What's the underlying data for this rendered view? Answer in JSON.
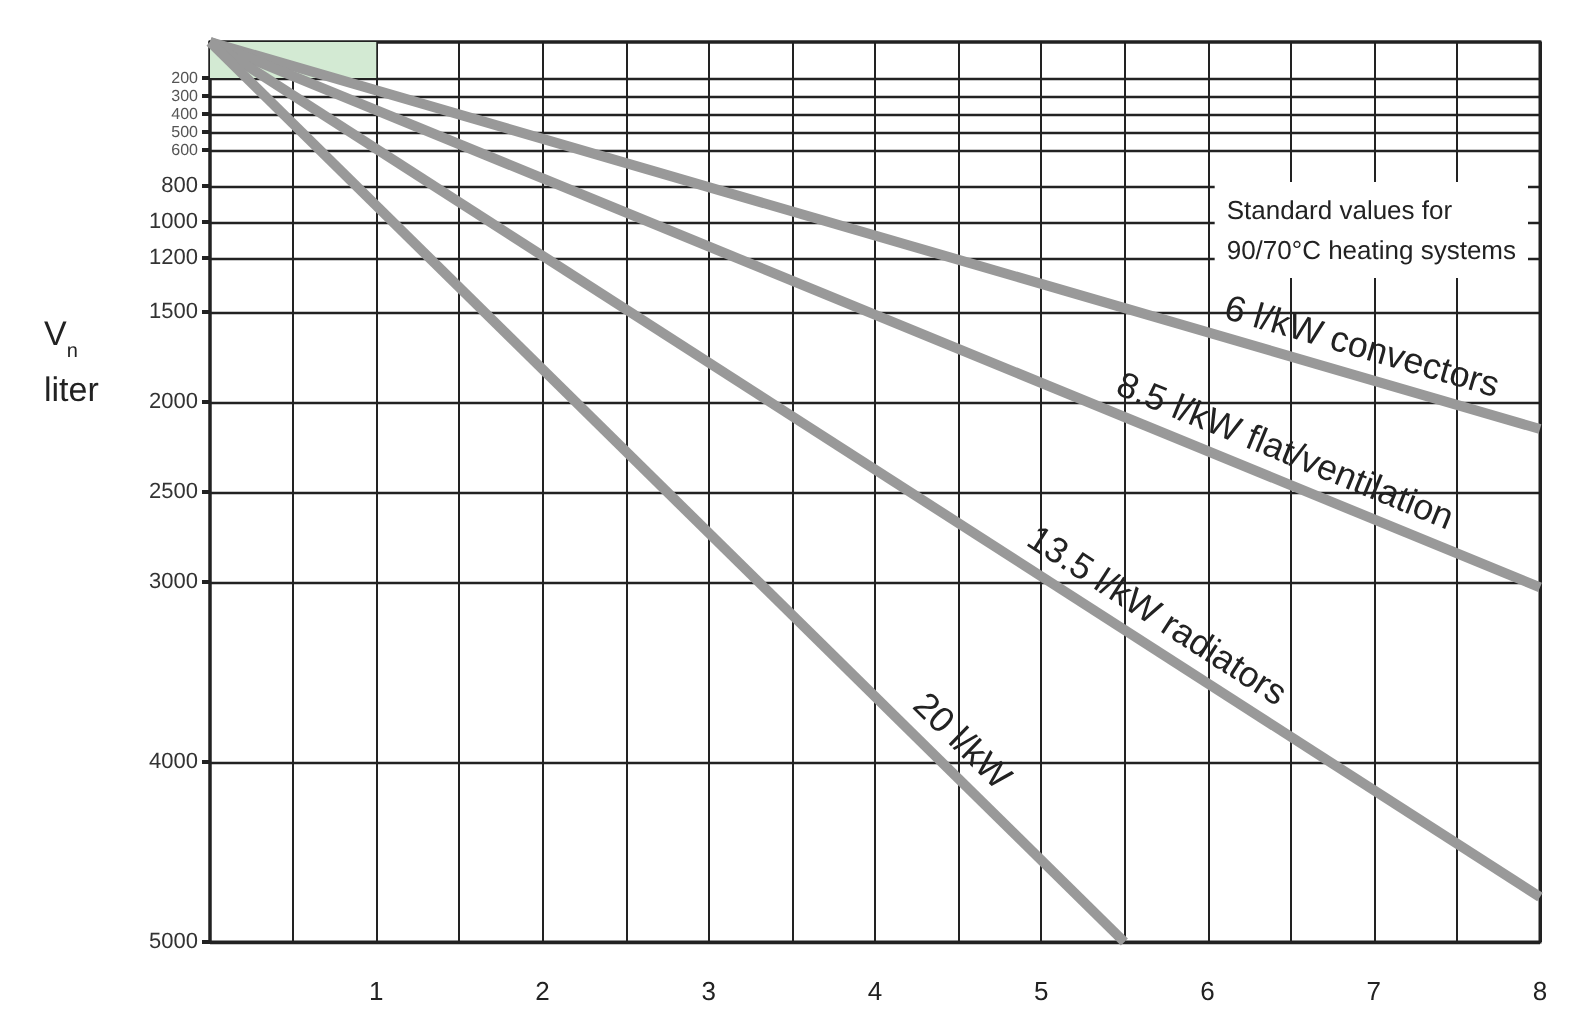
{
  "chart_data": {
    "type": "line",
    "ylabel": "V$_{n}$ liter",
    "annotations": [
      "Standard values for\n90/70°C heating systems"
    ],
    "xlim": [
      0,
      8
    ],
    "ylim": [
      5000,
      0
    ],
    "xticks": [
      {
        "value": 0.5,
        "label": null
      },
      1,
      {
        "value": 1.5,
        "label": null
      },
      2,
      {
        "value": 2.5,
        "label": null
      },
      3,
      {
        "value": 3.5,
        "label": null
      },
      4,
      {
        "value": 4.5,
        "label": null
      },
      5,
      {
        "value": 5.5,
        "label": null
      },
      6,
      {
        "value": 6.5,
        "label": null
      },
      7,
      {
        "value": 7.5,
        "label": null
      },
      8
    ],
    "yticks": [
      200,
      300,
      400,
      500,
      600,
      800,
      1000,
      1200,
      1500,
      2000,
      2500,
      3000,
      4000,
      5000
    ],
    "bands": [
      {
        "axis": "y",
        "from": 0,
        "to": 200,
        "color": "#d3ead3"
      }
    ],
    "grid": true,
    "legend": false,
    "marker": "none",
    "line_style": "solid",
    "series": [
      {
        "name": "6 l/kW convectors",
        "color": "#999999",
        "x": [
          0,
          8
        ],
        "values": [
          0,
          2150
        ]
      },
      {
        "name": "8.5 l/kW flat/ventilation",
        "color": "#999999",
        "x": [
          0,
          8
        ],
        "values": [
          0,
          3030
        ]
      },
      {
        "name": "13.5 l/kW radiators",
        "color": "#999999",
        "x": [
          0,
          8
        ],
        "values": [
          0,
          4750
        ]
      },
      {
        "name": "20 l/kW",
        "color": "#999999",
        "x": [
          0,
          5.5
        ],
        "values": [
          0,
          5000
        ]
      }
    ]
  }
}
